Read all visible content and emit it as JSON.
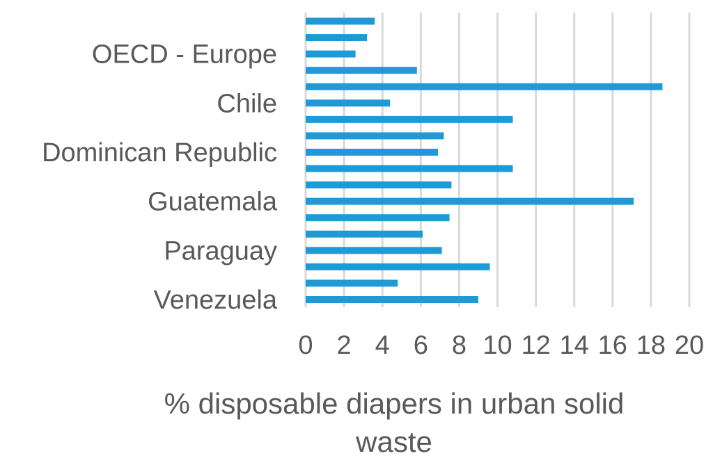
{
  "chart_data": {
    "type": "bar",
    "orientation": "horizontal",
    "categories": [
      "",
      "",
      "OECD - Europe",
      "",
      "",
      "Chile",
      "",
      "",
      "Dominican Republic",
      "",
      "",
      "Guatemala",
      "",
      "",
      "Paraguay",
      "",
      "",
      "Venezuela"
    ],
    "values": [
      3.6,
      3.2,
      2.6,
      5.8,
      18.6,
      4.4,
      10.8,
      7.2,
      6.9,
      10.8,
      7.6,
      17.1,
      7.5,
      6.1,
      7.1,
      9.6,
      4.8,
      9.0
    ],
    "xlabel_lines": [
      "% disposable diapers in urban solid",
      "waste"
    ],
    "ylabel": "",
    "xlim": [
      0,
      20
    ],
    "x_ticks": [
      "0",
      "2",
      "4",
      "6",
      "8",
      "10",
      "12",
      "14",
      "16",
      "18",
      "20"
    ],
    "grid": "vertical",
    "bar_color": "#1f9ad6",
    "grid_color": "#d9d9d9",
    "text_color": "#595959"
  }
}
